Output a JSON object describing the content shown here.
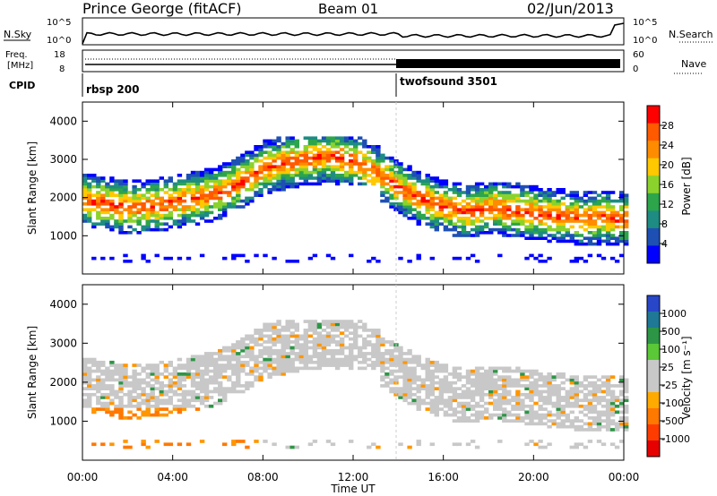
{
  "header": {
    "station": "Prince George (fitACF)",
    "beam": "Beam 01",
    "date": "02/Jun/2013"
  },
  "noise_panel": {
    "left_label": "N.Sky",
    "right_label": "N.Search",
    "left_ticks": [
      "10^5",
      "10^0"
    ],
    "right_ticks": [
      "10^5",
      "10^0"
    ]
  },
  "freq_panel": {
    "left_label_1": "Freq.",
    "left_label_2": "[MHz]",
    "right_label": "Nave",
    "left_ticks": [
      "18",
      "8"
    ],
    "right_ticks": [
      "60",
      "0"
    ]
  },
  "cpid_panel": {
    "label": "CPID",
    "programs": [
      "rbsp 200",
      "twofsound 3501"
    ]
  },
  "axes": {
    "ylabel": "Slant Range [km]",
    "xlabel": "Time UT",
    "yticks": [
      "4000",
      "3000",
      "2000",
      "1000"
    ],
    "xticks": [
      "00:00",
      "04:00",
      "08:00",
      "12:00",
      "16:00",
      "20:00",
      "00:00"
    ]
  },
  "colorbars": {
    "power": {
      "label": "Power [dB]",
      "ticks": [
        "28",
        "24",
        "20",
        "16",
        "12",
        "8",
        "4"
      ],
      "colors": [
        "#ff0000",
        "#ff5a00",
        "#ff8c00",
        "#ffc800",
        "#8cd22d",
        "#2da54b",
        "#1e8c82",
        "#1e50b4",
        "#0000ff"
      ]
    },
    "velocity": {
      "label": "Velocity [m s⁻¹]",
      "ticks": [
        "1000",
        "500",
        "100",
        "25",
        "-25",
        "-100",
        "-500",
        "-1000"
      ],
      "colors": [
        "#2846c8",
        "#1e7896",
        "#2d9646",
        "#5ac837",
        "#c8c8c8",
        "#c8c8c8",
        "#ffaa00",
        "#ff7800",
        "#ff3c00",
        "#e60000"
      ]
    }
  },
  "chart_data": [
    {
      "type": "heatmap",
      "title": "Power",
      "xlabel": "Time UT",
      "ylabel": "Slant Range [km]",
      "xlim": [
        0,
        24
      ],
      "ylim": [
        0,
        4500
      ],
      "colorbar_range_dB": [
        0,
        30
      ],
      "band_center_km": [
        [
          0,
          1900
        ],
        [
          1,
          1800
        ],
        [
          2,
          1700
        ],
        [
          3,
          1750
        ],
        [
          4,
          1850
        ],
        [
          5,
          1950
        ],
        [
          6,
          2100
        ],
        [
          7,
          2400
        ],
        [
          8,
          2750
        ],
        [
          9,
          2900
        ],
        [
          10,
          3000
        ],
        [
          11,
          3050
        ],
        [
          12,
          2900
        ],
        [
          13,
          2600
        ],
        [
          14,
          2200
        ],
        [
          15,
          1900
        ],
        [
          16,
          1700
        ],
        [
          17,
          1600
        ],
        [
          18,
          1700
        ],
        [
          19,
          1650
        ],
        [
          20,
          1550
        ],
        [
          21,
          1500
        ],
        [
          22,
          1400
        ],
        [
          23,
          1450
        ],
        [
          24,
          1400
        ]
      ]
    },
    {
      "type": "heatmap",
      "title": "Velocity",
      "xlabel": "Time UT",
      "ylabel": "Slant Range [km]",
      "xlim": [
        0,
        24
      ],
      "ylim": [
        0,
        4500
      ],
      "colorbar_range_ms": [
        -1000,
        1000
      ]
    }
  ]
}
